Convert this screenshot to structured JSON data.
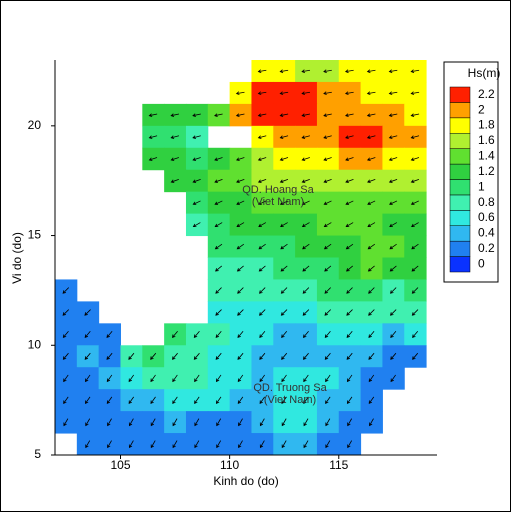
{
  "chart_data": {
    "type": "filled_contour",
    "xlabel": "Kinh do (do)",
    "ylabel": "Vi do (do)",
    "colorbar_title": "Hs(m)",
    "annotations": [
      "QD. Hoang Sa",
      "(Viet Nam)",
      "QD. Truong Sa",
      "(Viet Nam)"
    ],
    "xlim": [
      102,
      119.5
    ],
    "ylim": [
      5,
      23
    ],
    "xticks": [
      105,
      110,
      115
    ],
    "yticks": [
      5,
      10,
      15,
      20
    ],
    "lon": [
      102.5,
      103.5,
      104.5,
      105.5,
      106.5,
      107.5,
      108.5,
      109.5,
      110.5,
      111.5,
      112.5,
      113.5,
      114.5,
      115.5,
      116.5,
      117.5,
      118.5
    ],
    "lat": [
      22.5,
      21.5,
      20.5,
      19.5,
      18.5,
      17.5,
      16.5,
      15.5,
      14.5,
      13.5,
      12.5,
      11.5,
      10.5,
      9.5,
      8.5,
      7.5,
      6.5,
      5.5
    ],
    "values": [
      [
        null,
        null,
        null,
        null,
        null,
        null,
        null,
        null,
        null,
        1.8,
        1.8,
        1.7,
        1.7,
        1.8,
        1.8,
        1.8,
        1.8
      ],
      [
        null,
        null,
        null,
        null,
        null,
        null,
        null,
        null,
        1.9,
        2.3,
        2.3,
        2.2,
        2.0,
        2.0,
        1.9,
        1.9,
        1.9
      ],
      [
        null,
        null,
        null,
        null,
        1.2,
        1.3,
        1.2,
        1.4,
        2.1,
        2.3,
        2.3,
        2.2,
        2.1,
        2.1,
        2.1,
        2.0,
        1.9
      ],
      [
        null,
        null,
        null,
        null,
        1.1,
        1.0,
        0.9,
        null,
        null,
        1.9,
        2.0,
        2.0,
        2.1,
        2.2,
        2.2,
        2.1,
        2.0
      ],
      [
        null,
        null,
        null,
        null,
        1.2,
        1.2,
        1.1,
        1.3,
        1.5,
        1.7,
        1.8,
        1.9,
        1.9,
        2.0,
        2.0,
        1.9,
        1.8
      ],
      [
        null,
        null,
        null,
        null,
        null,
        1.2,
        1.3,
        1.4,
        1.5,
        1.6,
        1.6,
        1.6,
        1.6,
        1.7,
        1.7,
        1.6,
        1.6
      ],
      [
        null,
        null,
        null,
        null,
        null,
        null,
        1.1,
        1.2,
        1.3,
        1.4,
        1.5,
        1.5,
        1.5,
        1.5,
        1.5,
        1.5,
        1.5
      ],
      [
        null,
        null,
        null,
        null,
        null,
        null,
        0.9,
        1.1,
        1.2,
        1.2,
        1.3,
        1.3,
        1.4,
        1.4,
        1.4,
        1.3,
        1.3
      ],
      [
        null,
        null,
        null,
        null,
        null,
        null,
        null,
        1.0,
        1.0,
        1.1,
        1.1,
        1.2,
        1.2,
        1.3,
        1.4,
        1.4,
        1.3
      ],
      [
        null,
        null,
        null,
        null,
        null,
        null,
        null,
        0.9,
        0.9,
        0.9,
        1.0,
        1.0,
        1.1,
        1.3,
        1.4,
        1.3,
        1.2
      ],
      [
        0.3,
        null,
        null,
        null,
        null,
        null,
        null,
        0.8,
        0.8,
        0.8,
        0.8,
        0.9,
        1.0,
        1.1,
        1.0,
        0.9,
        1.0
      ],
      [
        0.3,
        0.3,
        null,
        null,
        null,
        null,
        null,
        0.7,
        0.7,
        0.7,
        0.7,
        0.7,
        0.8,
        0.8,
        0.8,
        0.8,
        0.8
      ],
      [
        0.3,
        0.3,
        0.3,
        null,
        null,
        1.0,
        0.9,
        0.8,
        0.7,
        0.6,
        0.5,
        0.5,
        0.6,
        0.7,
        0.6,
        0.5,
        0.6
      ],
      [
        0.3,
        0.4,
        0.3,
        0.8,
        1.0,
        0.9,
        0.8,
        0.7,
        0.6,
        0.5,
        0.5,
        0.5,
        0.5,
        0.5,
        0.4,
        0.3,
        0.3
      ],
      [
        0.3,
        0.3,
        0.4,
        0.6,
        0.9,
        0.9,
        0.8,
        0.7,
        0.6,
        0.5,
        0.6,
        0.6,
        0.6,
        0.5,
        0.3,
        0.3,
        null
      ],
      [
        0.3,
        0.3,
        0.3,
        0.4,
        0.5,
        0.7,
        0.7,
        0.6,
        0.5,
        0.4,
        0.6,
        0.6,
        0.5,
        0.4,
        0.3,
        null,
        null
      ],
      [
        0.3,
        0.3,
        0.3,
        0.3,
        0.3,
        0.4,
        0.3,
        0.3,
        0.3,
        0.4,
        0.6,
        0.6,
        0.4,
        0.3,
        0.3,
        null,
        null
      ],
      [
        null,
        0.3,
        0.3,
        0.3,
        0.3,
        0.3,
        0.3,
        0.3,
        0.3,
        0.3,
        0.5,
        0.5,
        0.3,
        0.3,
        null,
        null,
        null
      ]
    ],
    "wave_direction_deg": [
      190,
      190,
      192,
      195,
      198,
      200,
      205,
      210,
      215,
      220,
      225,
      225,
      230,
      230,
      235,
      235,
      240,
      240
    ],
    "levels": [
      0,
      0.2,
      0.4,
      0.6,
      0.8,
      1,
      1.2,
      1.4,
      1.6,
      1.8,
      2,
      2.2
    ],
    "colors": [
      "#0a32ff",
      "#2080f0",
      "#30b8f0",
      "#30e8e0",
      "#40f0b0",
      "#30e070",
      "#30d040",
      "#60e030",
      "#b0f030",
      "#ffff00",
      "#ffa000",
      "#ff2000"
    ]
  }
}
